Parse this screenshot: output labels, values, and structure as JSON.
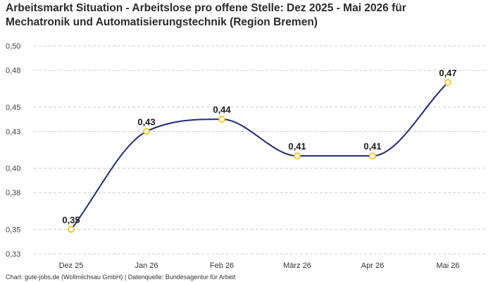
{
  "chart_data": {
    "type": "line",
    "title": "Arbeitsmarkt Situation - Arbeitslose pro offene Stelle: Dez 2025 - Mai 2026 für\nMechatronik und Automatisierungstechnik (Region Bremen)",
    "categories": [
      "Dez 25",
      "Jan 26",
      "Feb 26",
      "März 26",
      "Apr 26",
      "Mai 26"
    ],
    "series": [
      {
        "values": [
          0.35,
          0.43,
          0.44,
          0.41,
          0.41,
          0.47
        ],
        "labels": [
          "0,35",
          "0,43",
          "0,44",
          "0,41",
          "0,41",
          "0,47"
        ]
      }
    ],
    "ylim": [
      0.33,
      0.5
    ],
    "yticks": [
      0.33,
      0.35,
      0.38,
      0.4,
      0.43,
      0.45,
      0.48,
      0.5
    ],
    "ytick_labels": [
      "0,33",
      "0,35",
      "0,38",
      "0,40",
      "0,43",
      "0,45",
      "0,48",
      "0,50"
    ],
    "grid": true,
    "xlabel": "",
    "ylabel": "",
    "line_color": "#1f2d7a",
    "marker_color": "#f5c518",
    "grid_color": "#cccccc"
  },
  "footer": "Chart: gute-jobs.de (Wollmilchsau GmbH) | Datenquelle: Bundesagentur für Arbeit"
}
